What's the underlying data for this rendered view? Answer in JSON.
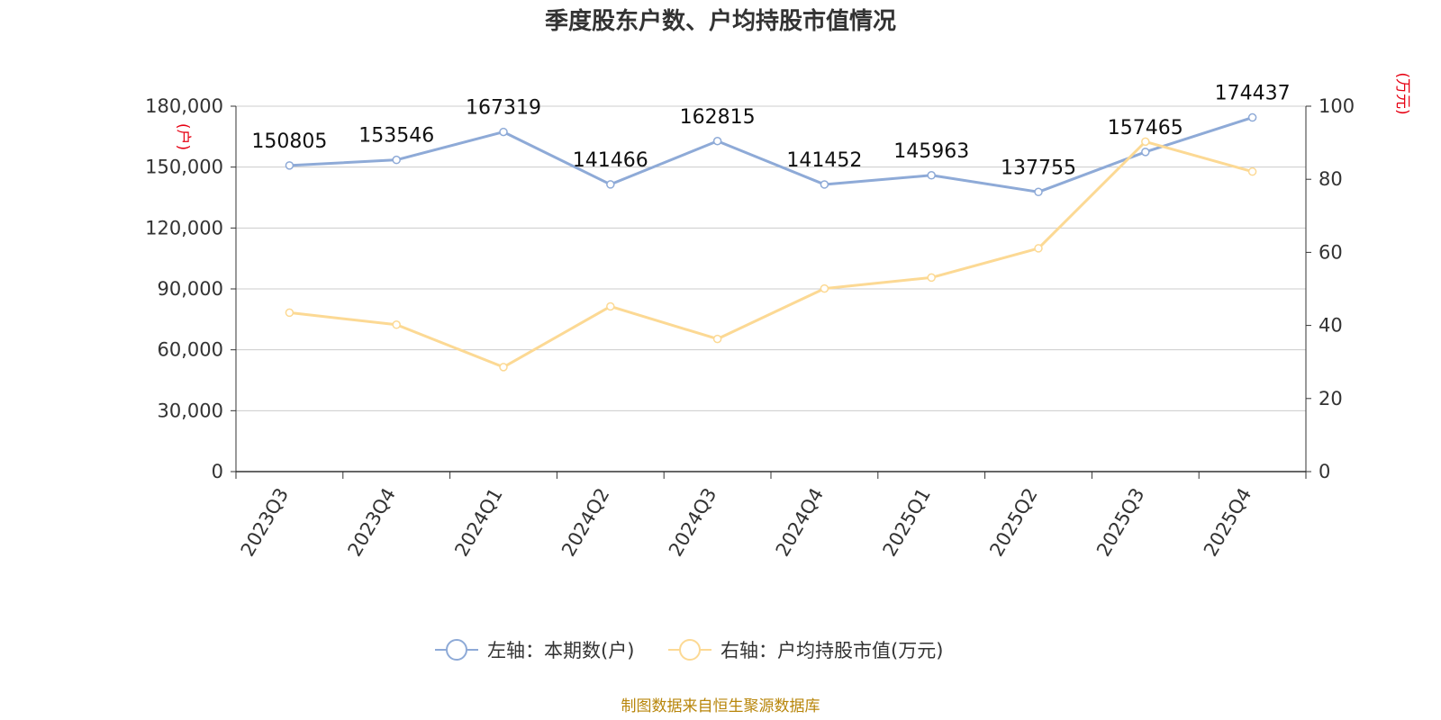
{
  "chart_data": {
    "type": "line",
    "title": "季度股东户数、户均持股市值情况",
    "categories": [
      "2023Q3",
      "2023Q4",
      "2024Q1",
      "2024Q2",
      "2024Q3",
      "2024Q4",
      "2025Q1",
      "2025Q2",
      "2025Q3",
      "2025Q4"
    ],
    "series": [
      {
        "name": "左轴：本期数(户)",
        "axis": "left",
        "color": "#8eaad7",
        "values": [
          150805,
          153546,
          167319,
          141466,
          162815,
          141452,
          145963,
          137755,
          157465,
          174437
        ],
        "labels": [
          "150805",
          "153546",
          "167319",
          "141466",
          "162815",
          "141452",
          "145963",
          "137755",
          "157465",
          "174437"
        ]
      },
      {
        "name": "右轴：户均持股市值(万元)",
        "axis": "right",
        "color": "#fcd994",
        "values": [
          43.5,
          40.2,
          28.6,
          45.2,
          36.3,
          50.1,
          53.1,
          61.1,
          90.3,
          82.1
        ]
      }
    ],
    "y_left": {
      "unit": "(户)",
      "min": 0,
      "max": 180000,
      "ticks": [
        0,
        30000,
        60000,
        90000,
        120000,
        150000,
        180000
      ],
      "tick_labels": [
        "0",
        "30,000",
        "60,000",
        "90,000",
        "120,000",
        "150,000",
        "180,000"
      ]
    },
    "y_right": {
      "unit": "(万元)",
      "min": 0,
      "max": 100,
      "ticks": [
        0,
        20,
        40,
        60,
        80,
        100
      ],
      "tick_labels": [
        "0",
        "20",
        "40",
        "60",
        "80",
        "100"
      ]
    },
    "grid": true,
    "legend_position": "bottom",
    "source": "制图数据来自恒生聚源数据库"
  }
}
